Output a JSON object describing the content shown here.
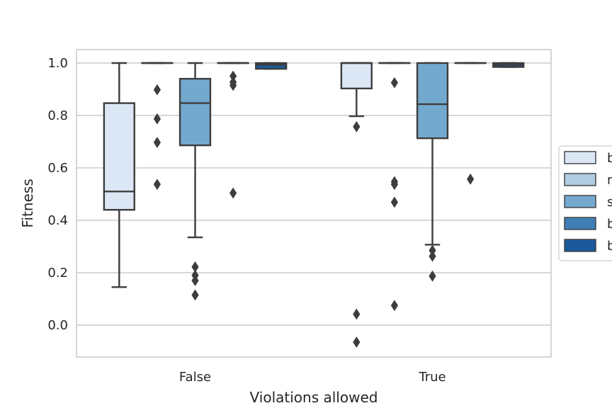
{
  "chart_data": {
    "type": "box",
    "title": "",
    "xlabel": "Violations allowed",
    "ylabel": "Fitness",
    "ylim": [
      -0.12,
      1.05
    ],
    "yticks": [
      0.0,
      0.2,
      0.4,
      0.6,
      0.8,
      1.0
    ],
    "ytick_labels": [
      "0.0",
      "0.2",
      "0.4",
      "0.6",
      "0.8",
      "1.0"
    ],
    "categories": [
      "False",
      "True"
    ],
    "grid": "horizontal",
    "legend_position": "right",
    "series": [
      {
        "name": "b",
        "color": "#dbe7f4",
        "stats": [
          {
            "min": 0.145,
            "q1": 0.44,
            "median": 0.51,
            "q3": 0.847,
            "max": 1.0,
            "outliers": []
          },
          {
            "min": 0.797,
            "q1": 0.903,
            "median": 1.0,
            "q3": 1.0,
            "max": 1.0,
            "outliers": [
              0.757,
              0.042,
              -0.065
            ]
          }
        ]
      },
      {
        "name": "n",
        "color": "#b0cde2",
        "stats": [
          {
            "min": 1.0,
            "q1": 1.0,
            "median": 1.0,
            "q3": 1.0,
            "max": 1.0,
            "outliers": [
              0.898,
              0.787,
              0.697,
              0.537
            ]
          },
          {
            "min": 1.0,
            "q1": 1.0,
            "median": 1.0,
            "q3": 1.0,
            "max": 1.0,
            "outliers": [
              0.925,
              0.547,
              0.537,
              0.469,
              0.075
            ]
          }
        ]
      },
      {
        "name": "s",
        "color": "#74a9cf",
        "stats": [
          {
            "min": 0.335,
            "q1": 0.686,
            "median": 0.847,
            "q3": 0.94,
            "max": 1.0,
            "outliers": [
              0.222,
              0.19,
              0.17,
              0.115
            ]
          },
          {
            "min": 0.307,
            "q1": 0.713,
            "median": 0.843,
            "q3": 1.0,
            "max": 1.0,
            "outliers": [
              0.285,
              0.263,
              0.187
            ]
          }
        ]
      },
      {
        "name": "b",
        "color": "#3f7fb5",
        "stats": [
          {
            "min": 1.0,
            "q1": 1.0,
            "median": 1.0,
            "q3": 1.0,
            "max": 1.0,
            "outliers": [
              0.95,
              0.927,
              0.915,
              0.504
            ]
          },
          {
            "min": 1.0,
            "q1": 1.0,
            "median": 1.0,
            "q3": 1.0,
            "max": 1.0,
            "outliers": [
              0.557
            ]
          }
        ]
      },
      {
        "name": "b",
        "color": "#1a5a9c",
        "stats": [
          {
            "min": 0.978,
            "q1": 0.978,
            "median": 0.993,
            "q3": 1.0,
            "max": 1.0,
            "outliers": []
          },
          {
            "min": 0.985,
            "q1": 0.985,
            "median": 0.993,
            "q3": 1.0,
            "max": 1.0,
            "outliers": []
          }
        ]
      }
    ]
  }
}
